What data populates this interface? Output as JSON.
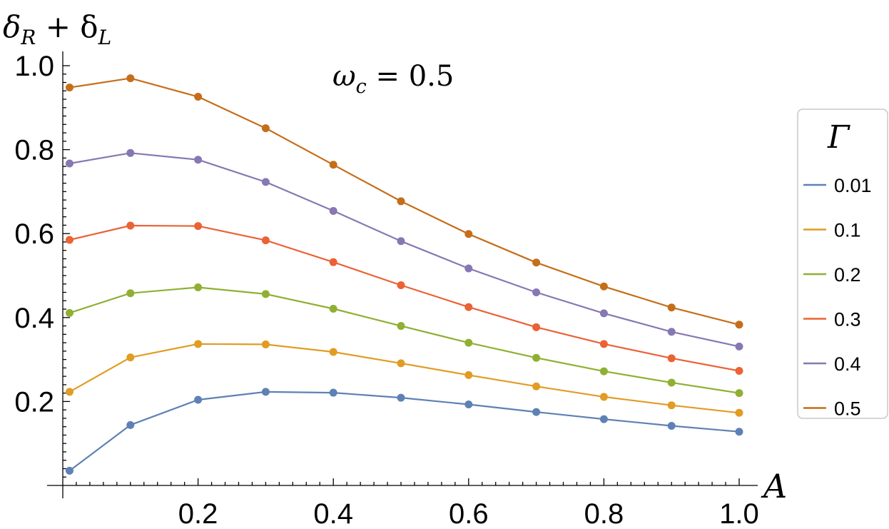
{
  "chart_data": {
    "type": "line",
    "xlabel": "A",
    "ylabel": "δR + δL",
    "annotation": "ωc = 0.5",
    "legend_title": "Γ",
    "legend_position": "right",
    "xlim": [
      0,
      1.0
    ],
    "ylim": [
      0,
      1.0
    ],
    "x_ticks": [
      "0.2",
      "0.4",
      "0.6",
      "0.8",
      "1.0"
    ],
    "y_ticks": [
      "0.2",
      "0.4",
      "0.6",
      "0.8",
      "1.0"
    ],
    "grid": false,
    "x": [
      0.01,
      0.1,
      0.2,
      0.3,
      0.4,
      0.5,
      0.6,
      0.7,
      0.8,
      0.9,
      1.0
    ],
    "series": [
      {
        "name": "0.01",
        "color": "#5e81b5",
        "values": [
          0.035,
          0.144,
          0.204,
          0.223,
          0.221,
          0.209,
          0.193,
          0.175,
          0.158,
          0.142,
          0.128
        ]
      },
      {
        "name": "0.1",
        "color": "#e19c24",
        "values": [
          0.223,
          0.305,
          0.337,
          0.336,
          0.318,
          0.291,
          0.263,
          0.236,
          0.211,
          0.191,
          0.173
        ]
      },
      {
        "name": "0.2",
        "color": "#8fb032",
        "values": [
          0.411,
          0.458,
          0.472,
          0.456,
          0.421,
          0.38,
          0.34,
          0.304,
          0.272,
          0.245,
          0.22
        ]
      },
      {
        "name": "0.3",
        "color": "#eb6235",
        "values": [
          0.585,
          0.619,
          0.618,
          0.584,
          0.532,
          0.477,
          0.425,
          0.377,
          0.337,
          0.303,
          0.273
        ]
      },
      {
        "name": "0.4",
        "color": "#8778b3",
        "values": [
          0.767,
          0.792,
          0.776,
          0.723,
          0.654,
          0.582,
          0.517,
          0.46,
          0.41,
          0.366,
          0.331
        ]
      },
      {
        "name": "0.5",
        "color": "#c56e1a",
        "values": [
          0.948,
          0.97,
          0.926,
          0.851,
          0.764,
          0.677,
          0.599,
          0.531,
          0.474,
          0.424,
          0.383
        ]
      }
    ]
  }
}
